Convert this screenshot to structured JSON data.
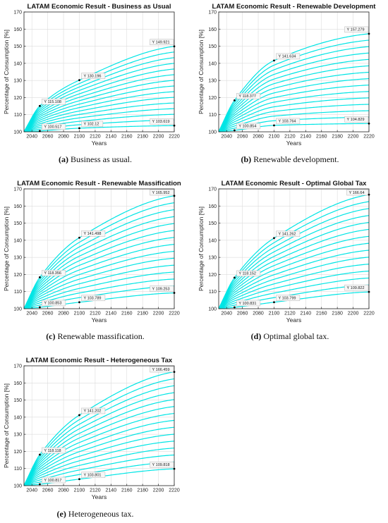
{
  "theme": {
    "line_color": "#00e5e5",
    "axis_color": "#222222",
    "box_fill": "#f7f7f7",
    "box_stroke": "#b5b5b5"
  },
  "panels": [
    {
      "caption_letter": "(a)",
      "caption_text": " Business as usual."
    },
    {
      "caption_letter": "(b)",
      "caption_text": " Renewable development."
    },
    {
      "caption_letter": "(c)",
      "caption_text": " Renewable massification."
    },
    {
      "caption_letter": "(d)",
      "caption_text": " Optimal global tax."
    },
    {
      "caption_letter": "(e)",
      "caption_text": " Heterogeneous tax."
    }
  ],
  "chart_data": [
    {
      "type": "line",
      "title": "LATAM Economic Result - Business as Usual",
      "xlabel": "Years",
      "ylabel": "Percentage of Consumption [%]",
      "xlim": [
        2030,
        2220
      ],
      "ylim": [
        100,
        170
      ],
      "xticks": [
        2040,
        2060,
        2080,
        2100,
        2120,
        2140,
        2160,
        2180,
        2200,
        2220
      ],
      "yticks": [
        100,
        110,
        120,
        130,
        140,
        150,
        160,
        170
      ],
      "grid": true,
      "line_count": 15,
      "highest_curve": {
        "x": [
          2030,
          2050,
          2100,
          2220
        ],
        "y": [
          100.2,
          115.108,
          130.196,
          149.921
        ]
      },
      "lowest_curve": {
        "x": [
          2030,
          2050,
          2100,
          2220
        ],
        "y": [
          100.1,
          100.517,
          102.12,
          103.619
        ]
      },
      "data_tips": [
        {
          "x": 2050,
          "y": 115.108,
          "label": "Y 115.108"
        },
        {
          "x": 2100,
          "y": 130.196,
          "label": "Y 130.196"
        },
        {
          "x": 2220,
          "y": 149.921,
          "label": "Y 149.921"
        },
        {
          "x": 2050,
          "y": 100.517,
          "label": "Y 100.517"
        },
        {
          "x": 2100,
          "y": 102.12,
          "label": "Y 102.12"
        },
        {
          "x": 2220,
          "y": 103.619,
          "label": "Y 103.619"
        }
      ]
    },
    {
      "type": "line",
      "title": "LATAM Economic Result - Renewable Development",
      "xlabel": "Years",
      "ylabel": "Percentage of Consumption [%]",
      "xlim": [
        2030,
        2220
      ],
      "ylim": [
        100,
        170
      ],
      "xticks": [
        2040,
        2060,
        2080,
        2100,
        2120,
        2140,
        2160,
        2180,
        2200,
        2220
      ],
      "yticks": [
        100,
        110,
        120,
        130,
        140,
        150,
        160,
        170
      ],
      "grid": true,
      "line_count": 15,
      "highest_curve": {
        "x": [
          2030,
          2050,
          2100,
          2220
        ],
        "y": [
          100.2,
          118.377,
          141.634,
          157.279
        ]
      },
      "lowest_curve": {
        "x": [
          2030,
          2050,
          2100,
          2220
        ],
        "y": [
          100.1,
          100.854,
          103.764,
          104.829
        ]
      },
      "data_tips": [
        {
          "x": 2050,
          "y": 118.377,
          "label": "Y 118.377"
        },
        {
          "x": 2100,
          "y": 141.634,
          "label": "Y 141.634"
        },
        {
          "x": 2220,
          "y": 157.279,
          "label": "Y 157.279"
        },
        {
          "x": 2050,
          "y": 100.854,
          "label": "Y 100.854"
        },
        {
          "x": 2100,
          "y": 103.764,
          "label": "Y 103.764"
        },
        {
          "x": 2220,
          "y": 104.829,
          "label": "Y 104.829"
        }
      ]
    },
    {
      "type": "line",
      "title": "LATAM Economic Result - Renewable Massification",
      "xlabel": "Years",
      "ylabel": "Percentage of Consumption [%]",
      "xlim": [
        2030,
        2220
      ],
      "ylim": [
        100,
        170
      ],
      "xticks": [
        2040,
        2060,
        2080,
        2100,
        2120,
        2140,
        2160,
        2180,
        2200,
        2220
      ],
      "yticks": [
        100,
        110,
        120,
        130,
        140,
        150,
        160,
        170
      ],
      "grid": true,
      "line_count": 15,
      "highest_curve": {
        "x": [
          2030,
          2050,
          2100,
          2220
        ],
        "y": [
          100.2,
          118.356,
          141.498,
          165.952
        ]
      },
      "lowest_curve": {
        "x": [
          2030,
          2050,
          2100,
          2220
        ],
        "y": [
          100.1,
          100.853,
          103.789,
          109.253
        ]
      },
      "data_tips": [
        {
          "x": 2050,
          "y": 118.356,
          "label": "Y 118.356"
        },
        {
          "x": 2100,
          "y": 141.498,
          "label": "Y 141.498"
        },
        {
          "x": 2220,
          "y": 165.952,
          "label": "Y 165.952"
        },
        {
          "x": 2050,
          "y": 100.853,
          "label": "Y 100.853"
        },
        {
          "x": 2100,
          "y": 103.789,
          "label": "Y 103.789"
        },
        {
          "x": 2220,
          "y": 109.253,
          "label": "Y 109.253"
        }
      ]
    },
    {
      "type": "line",
      "title": "LATAM Economic Result - Optimal Global Tax",
      "xlabel": "Years",
      "ylabel": "Percentage of Consumption [%]",
      "xlim": [
        2030,
        2220
      ],
      "ylim": [
        100,
        170
      ],
      "xticks": [
        2040,
        2060,
        2080,
        2100,
        2120,
        2140,
        2160,
        2180,
        2200,
        2220
      ],
      "yticks": [
        100,
        110,
        120,
        130,
        140,
        150,
        160,
        170
      ],
      "grid": true,
      "line_count": 15,
      "highest_curve": {
        "x": [
          2030,
          2050,
          2100,
          2220
        ],
        "y": [
          100.2,
          118.152,
          141.262,
          166.64
        ]
      },
      "lowest_curve": {
        "x": [
          2030,
          2050,
          2100,
          2220
        ],
        "y": [
          100.1,
          100.831,
          103.799,
          109.822
        ]
      },
      "data_tips": [
        {
          "x": 2050,
          "y": 118.152,
          "label": "Y 118.152"
        },
        {
          "x": 2100,
          "y": 141.262,
          "label": "Y 141.262"
        },
        {
          "x": 2220,
          "y": 166.64,
          "label": "Y 166.64"
        },
        {
          "x": 2050,
          "y": 100.831,
          "label": "Y 100.831"
        },
        {
          "x": 2100,
          "y": 103.799,
          "label": "Y 103.799"
        },
        {
          "x": 2220,
          "y": 109.822,
          "label": "Y 109.822"
        }
      ]
    },
    {
      "type": "line",
      "title": "LATAM Economic Result - Heterogeneous Tax",
      "xlabel": "Years",
      "ylabel": "Percentage of Consumption [%]",
      "xlim": [
        2030,
        2220
      ],
      "ylim": [
        100,
        170
      ],
      "xticks": [
        2040,
        2060,
        2080,
        2100,
        2120,
        2140,
        2160,
        2180,
        2200,
        2220
      ],
      "yticks": [
        100,
        110,
        120,
        130,
        140,
        150,
        160,
        170
      ],
      "grid": true,
      "line_count": 15,
      "highest_curve": {
        "x": [
          2030,
          2050,
          2100,
          2220
        ],
        "y": [
          100.2,
          118.118,
          141.202,
          166.459
        ]
      },
      "lowest_curve": {
        "x": [
          2030,
          2050,
          2100,
          2220
        ],
        "y": [
          100.1,
          100.817,
          103.801,
          109.818
        ]
      },
      "data_tips": [
        {
          "x": 2050,
          "y": 118.118,
          "label": "Y 118.118"
        },
        {
          "x": 2100,
          "y": 141.202,
          "label": "Y 141.202"
        },
        {
          "x": 2220,
          "y": 166.459,
          "label": "Y 166.459"
        },
        {
          "x": 2050,
          "y": 100.817,
          "label": "Y 100.817"
        },
        {
          "x": 2100,
          "y": 103.801,
          "label": "Y 103.801"
        },
        {
          "x": 2220,
          "y": 109.818,
          "label": "Y 109.818"
        }
      ]
    }
  ]
}
